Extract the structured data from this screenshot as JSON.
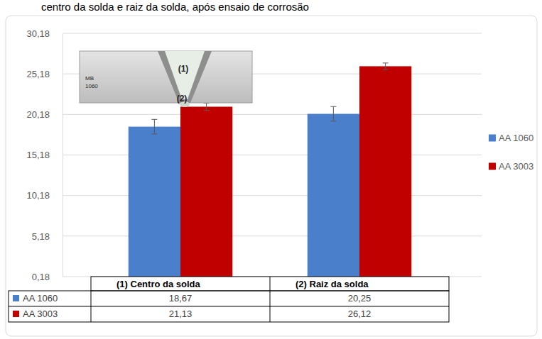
{
  "chart_data": {
    "type": "bar",
    "title": "centro da solda e raiz da solda, após ensaio de corrosão",
    "categories": [
      "(1) Centro da solda",
      "(2) Raiz da solda"
    ],
    "series": [
      {
        "name": "AA 1060",
        "color": "#4a7fcc",
        "values": [
          18.67,
          20.25
        ],
        "value_labels": [
          "18,67",
          "20,25"
        ],
        "errors": [
          0.9,
          0.9
        ]
      },
      {
        "name": "AA 3003",
        "color": "#c00000",
        "values": [
          21.13,
          26.12
        ],
        "value_labels": [
          "21,13",
          "26,12"
        ],
        "errors": [
          0.45,
          0.4
        ]
      }
    ],
    "ylim": [
      0.18,
      30.18
    ],
    "yticks": [
      {
        "value": 0.18,
        "label": "0,18"
      },
      {
        "value": 5.18,
        "label": "5,18"
      },
      {
        "value": 10.18,
        "label": "10,18"
      },
      {
        "value": 15.18,
        "label": "15,18"
      },
      {
        "value": 20.18,
        "label": "20,18"
      },
      {
        "value": 25.18,
        "label": "25,18"
      },
      {
        "value": 30.18,
        "label": "30,18"
      }
    ],
    "grid": true,
    "legend": "right",
    "annotations": [
      "MB",
      "1060",
      "(1)",
      "(2)"
    ]
  }
}
